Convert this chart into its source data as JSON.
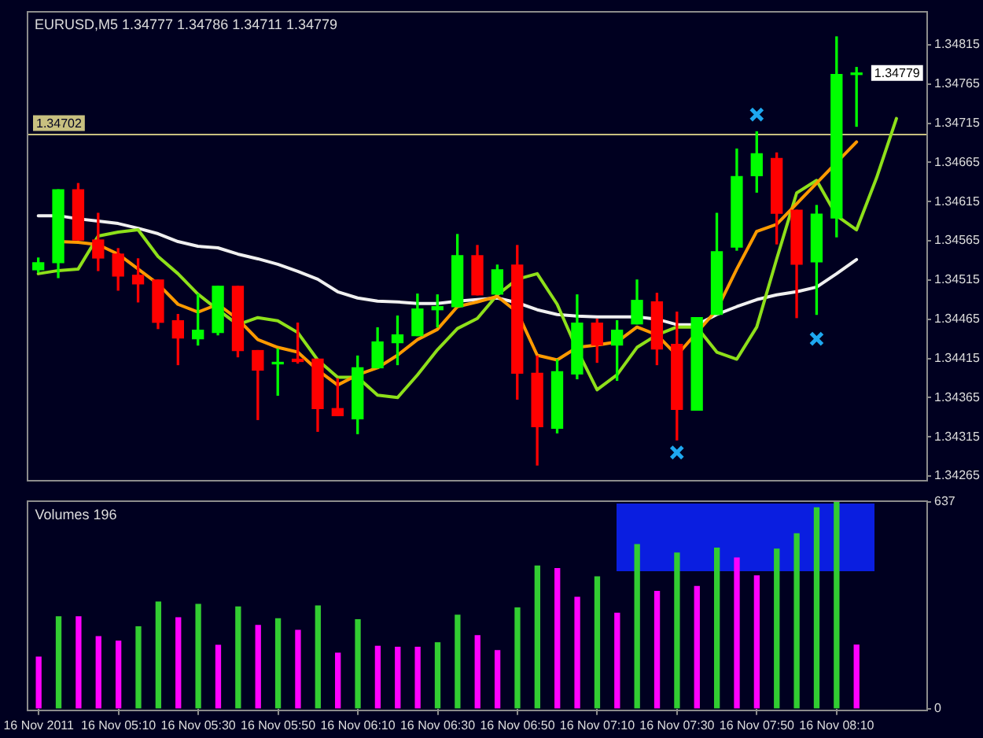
{
  "chart_data": [
    {
      "type": "candlestick",
      "title": "EURUSD,M5 1.34777 1.34786 1.34711 1.34779",
      "categories": [
        null,
        null,
        null,
        null,
        null,
        null,
        null,
        null,
        null,
        null,
        null,
        null,
        null,
        null,
        null,
        null,
        null,
        null,
        null,
        null,
        null,
        null,
        null,
        null,
        null,
        null,
        null,
        null,
        null,
        null,
        null,
        null,
        null,
        null,
        null,
        null,
        null,
        null,
        null,
        null,
        null,
        null,
        null,
        null,
        null
      ],
      "ohlc": [
        [
          1.34528,
          1.34543,
          1.34525,
          1.34537
        ],
        [
          1.34537,
          1.3463,
          1.34518,
          1.3463
        ],
        [
          1.3463,
          1.34638,
          1.34566,
          1.34566
        ],
        [
          1.34566,
          1.346,
          1.34527,
          1.34543
        ],
        [
          1.34548,
          1.34555,
          1.34502,
          1.3452
        ],
        [
          1.34521,
          1.34542,
          1.34487,
          1.3451
        ],
        [
          1.34515,
          1.34515,
          1.34453,
          1.34461
        ],
        [
          1.34463,
          1.34471,
          1.34407,
          1.34441
        ],
        [
          1.3444,
          1.34497,
          1.34432,
          1.34451
        ],
        [
          1.34448,
          1.34507,
          1.34445,
          1.34507
        ],
        [
          1.34507,
          1.34507,
          1.34417,
          1.34425
        ],
        [
          1.34425,
          1.34425,
          1.34337,
          1.344
        ],
        [
          1.34408,
          1.34427,
          1.34368,
          1.34409
        ],
        [
          1.34414,
          1.3446,
          1.34409,
          1.34411
        ],
        [
          1.34414,
          1.34414,
          1.34322,
          1.34351
        ],
        [
          1.34351,
          1.34389,
          1.34342,
          1.34342
        ],
        [
          1.34338,
          1.34418,
          1.34319,
          1.34403
        ],
        [
          1.34403,
          1.34454,
          1.34403,
          1.34436
        ],
        [
          1.34435,
          1.34469,
          1.34407,
          1.34445
        ],
        [
          1.34444,
          1.34497,
          1.34444,
          1.34478
        ],
        [
          1.34477,
          1.34496,
          1.34455,
          1.34481
        ],
        [
          1.34481,
          1.34573,
          1.34481,
          1.34546
        ],
        [
          1.34546,
          1.34559,
          1.34496,
          1.34496
        ],
        [
          1.34497,
          1.34534,
          1.34497,
          1.34528
        ],
        [
          1.34534,
          1.34559,
          1.34363,
          1.34396
        ],
        [
          1.34396,
          1.34418,
          1.34279,
          1.34328
        ],
        [
          1.34326,
          1.34413,
          1.3432,
          1.34398
        ],
        [
          1.34395,
          1.34496,
          1.34389,
          1.3446
        ],
        [
          1.3446,
          1.34465,
          1.3441,
          1.34432
        ],
        [
          1.34432,
          1.34463,
          1.34387,
          1.34451
        ],
        [
          1.34459,
          1.34515,
          1.34459,
          1.34489
        ],
        [
          1.34487,
          1.34498,
          1.34407,
          1.34427
        ],
        [
          1.34433,
          1.34474,
          1.34311,
          1.3435
        ],
        [
          1.34349,
          1.34467,
          1.34349,
          1.34467
        ],
        [
          1.34471,
          1.346,
          1.34471,
          1.34551
        ],
        [
          1.34557,
          1.34682,
          1.34553,
          1.34647
        ],
        [
          1.34648,
          1.34704,
          1.34627,
          1.34676
        ],
        [
          1.3467,
          1.34677,
          1.34561,
          1.346
        ],
        [
          1.34604,
          1.34604,
          1.34467,
          1.34535
        ],
        [
          1.34538,
          1.3461,
          1.34471,
          1.34599
        ],
        [
          1.34594,
          1.34825,
          1.3457,
          1.34777
        ],
        [
          1.34777,
          1.34786,
          1.34711,
          1.34779
        ],
        null,
        null,
        null
      ],
      "colors": [
        "#00ff00",
        "#00ff00",
        "#ff0000",
        "#ff0000",
        "#ff0000",
        "#ff0000",
        "#ff0000",
        "#ff0000",
        "#00ff00",
        "#00ff00",
        "#ff0000",
        "#ff0000",
        "#00ff00",
        "#ff0000",
        "#ff0000",
        "#ff0000",
        "#00ff00",
        "#00ff00",
        "#00ff00",
        "#00ff00",
        "#00ff00",
        "#00ff00",
        "#ff0000",
        "#00ff00",
        "#ff0000",
        "#ff0000",
        "#00ff00",
        "#00ff00",
        "#ff0000",
        "#00ff00",
        "#00ff00",
        "#ff0000",
        "#ff0000",
        "#00ff00",
        "#00ff00",
        "#00ff00",
        "#00ff00",
        "#ff0000",
        "#ff0000",
        "#00ff00",
        "#00ff00",
        "#00ff00",
        null,
        null,
        null
      ],
      "series": [
        {
          "type": "line",
          "color": "#ff9a00",
          "values": [
            null,
            1.34564,
            1.34563,
            1.3456,
            1.34548,
            1.34529,
            1.3451,
            1.34484,
            1.34474,
            1.34484,
            1.34465,
            1.34439,
            1.34429,
            1.34423,
            1.344,
            1.34381,
            1.34394,
            1.34403,
            1.34419,
            1.34439,
            1.34452,
            1.34481,
            1.34487,
            1.34494,
            1.34474,
            1.34419,
            1.34413,
            1.34429,
            1.34432,
            1.34436,
            1.34455,
            1.34445,
            1.34419,
            null,
            1.34477,
            1.34529,
            1.34577,
            1.34586,
            null,
            null,
            null,
            1.34691,
            null,
            null,
            null
          ]
        },
        {
          "type": "line",
          "color": "#8ee01a",
          "values": [
            1.34523,
            1.34527,
            1.34529,
            1.34571,
            1.34576,
            1.34579,
            1.34545,
            1.34523,
            1.34497,
            1.34477,
            1.34458,
            1.34467,
            1.34463,
            1.34448,
            1.34413,
            1.34391,
            1.34391,
            1.34368,
            1.34365,
            1.34394,
            1.34426,
            1.34453,
            1.34466,
            1.34496,
            1.34516,
            1.34523,
            1.34484,
            1.34426,
            1.34375,
            1.34394,
            1.34429,
            1.34445,
            1.34455,
            1.34455,
            1.34423,
            1.34414,
            1.34455,
            1.34542,
            1.34626,
            1.34642,
            1.34597,
            1.34579,
            1.34645,
            1.34721,
            null
          ]
        },
        {
          "type": "line",
          "color": "#f0f0f0",
          "values": [
            1.34597,
            1.34597,
            1.34593,
            1.3459,
            1.34587,
            1.34581,
            1.34574,
            1.34564,
            1.34558,
            1.34556,
            1.34548,
            1.34542,
            1.34535,
            1.34526,
            1.34516,
            1.345,
            1.34492,
            1.34488,
            1.34487,
            1.34485,
            1.34485,
            1.34488,
            1.3449,
            1.34492,
            1.34486,
            1.34477,
            1.34471,
            1.34469,
            1.34468,
            1.34468,
            1.34468,
            1.34465,
            1.34458,
            1.34458,
            1.34471,
            1.34481,
            1.3449,
            1.34496,
            1.345,
            1.34506,
            1.34523,
            1.34541,
            null,
            null,
            null
          ]
        },
        {
          "type": "scatter",
          "color": "#1ea8f0",
          "marker": "cross",
          "values": [
            null,
            null,
            null,
            null,
            null,
            null,
            null,
            null,
            null,
            null,
            null,
            null,
            null,
            null,
            null,
            null,
            null,
            null,
            null,
            null,
            null,
            null,
            null,
            null,
            null,
            null,
            null,
            null,
            null,
            null,
            null,
            null,
            1.34295,
            null,
            null,
            null,
            1.34726,
            null,
            null,
            1.3444,
            null,
            null,
            null,
            null,
            null
          ]
        }
      ],
      "ylim": [
        1.34261,
        1.34857
      ],
      "yticks": [
        1.34265,
        1.34315,
        1.34365,
        1.34415,
        1.34465,
        1.34515,
        1.34565,
        1.34615,
        1.34665,
        1.34715,
        1.34765,
        1.34815
      ],
      "ref_lines": [
        {
          "axis": "y",
          "value": 1.34702,
          "label": "1.34702",
          "color": "#c8c080"
        }
      ],
      "annotations": [
        {
          "text": "1.34779",
          "y": 1.34779
        }
      ],
      "tick_labels": "y"
    },
    {
      "type": "bar",
      "title": "Volumes 196",
      "categories": [
        "16 Nov 2011",
        null,
        null,
        null,
        "16 Nov 05:10",
        null,
        null,
        null,
        "16 Nov 05:30",
        null,
        null,
        null,
        "16 Nov 05:50",
        null,
        null,
        null,
        "16 Nov 06:10",
        null,
        null,
        null,
        "16 Nov 06:30",
        null,
        null,
        null,
        "16 Nov 06:50",
        null,
        null,
        null,
        "16 Nov 07:10",
        null,
        null,
        null,
        "16 Nov 07:30",
        null,
        null,
        null,
        "16 Nov 07:50",
        null,
        null,
        null,
        "16 Nov 08:10",
        null,
        null,
        null,
        null
      ],
      "values": [
        159,
        283,
        283,
        222,
        208,
        252,
        328,
        280,
        321,
        195,
        313,
        256,
        277,
        241,
        316,
        171,
        274,
        192,
        189,
        189,
        203,
        288,
        225,
        179,
        310,
        439,
        431,
        343,
        406,
        294,
        505,
        361,
        479,
        376,
        494,
        464,
        409,
        491,
        538,
        618,
        637,
        196,
        null,
        null,
        null
      ],
      "colors": [
        "#ff00ff",
        "#32cd32",
        "#ff00ff",
        "#ff00ff",
        "#ff00ff",
        "#32cd32",
        "#32cd32",
        "#ff00ff",
        "#32cd32",
        "#ff00ff",
        "#32cd32",
        "#ff00ff",
        "#32cd32",
        "#ff00ff",
        "#32cd32",
        "#ff00ff",
        "#32cd32",
        "#ff00ff",
        "#ff00ff",
        "#ff00ff",
        "#32cd32",
        "#32cd32",
        "#ff00ff",
        "#ff00ff",
        "#32cd32",
        "#32cd32",
        "#ff00ff",
        "#ff00ff",
        "#32cd32",
        "#ff00ff",
        "#32cd32",
        "#ff00ff",
        "#32cd32",
        "#ff00ff",
        "#32cd32",
        "#ff00ff",
        "#ff00ff",
        "#32cd32",
        "#32cd32",
        "#32cd32",
        "#32cd32",
        "#ff00ff",
        null,
        null,
        null
      ],
      "ylim": [
        0,
        637
      ],
      "yticks": [
        0,
        637
      ]
    }
  ]
}
